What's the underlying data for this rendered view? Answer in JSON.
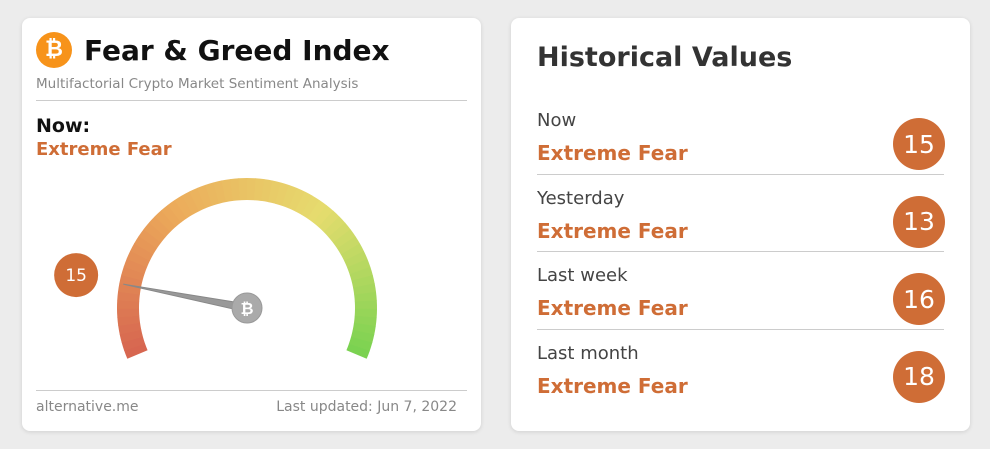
{
  "left": {
    "title": "Fear & Greed Index",
    "subtitle": "Multifactorial Crypto Market Sentiment Analysis",
    "now_label": "Now:",
    "classification": "Extreme Fear",
    "value": 15,
    "gauge_range": [
      0,
      100
    ],
    "footer_source": "alternative.me",
    "footer_updated": "Last updated: Jun 7, 2022"
  },
  "right": {
    "title": "Historical Values",
    "rows": [
      {
        "label": "Now",
        "classification": "Extreme Fear",
        "value": 15
      },
      {
        "label": "Yesterday",
        "classification": "Extreme Fear",
        "value": 13
      },
      {
        "label": "Last week",
        "classification": "Extreme Fear",
        "value": 16
      },
      {
        "label": "Last month",
        "classification": "Extreme Fear",
        "value": 18
      }
    ]
  }
}
